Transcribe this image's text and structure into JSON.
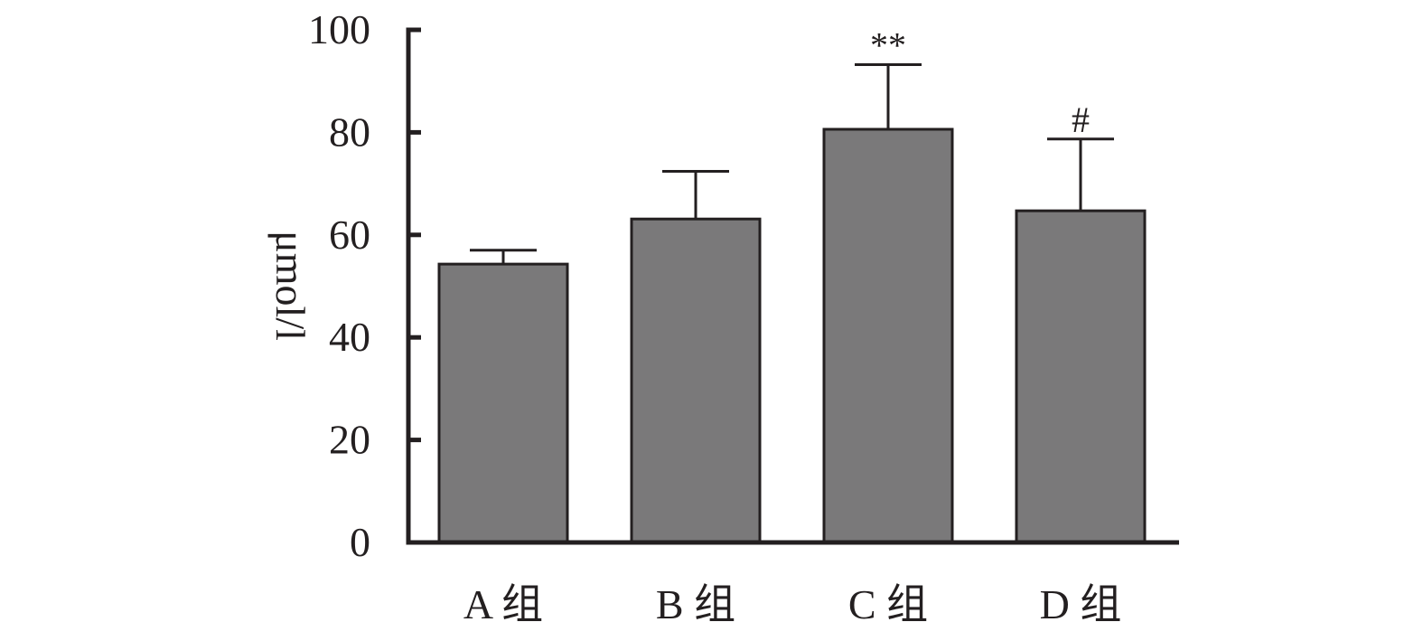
{
  "chart_data": {
    "type": "bar",
    "title": "",
    "xlabel": "",
    "ylabel": "μmol/l",
    "ylim": [
      0,
      100
    ],
    "yticks": [
      0,
      20,
      40,
      60,
      80,
      100
    ],
    "ytick_labels": [
      "0",
      "20",
      "40",
      "60",
      "80",
      "100"
    ],
    "categories": [
      "A 组",
      "B 组",
      "C 组",
      "D 组"
    ],
    "values": [
      54.3,
      63.1,
      80.6,
      64.7
    ],
    "error_upper": [
      57.0,
      72.4,
      93.2,
      78.7
    ],
    "annotations": [
      "",
      "",
      "**",
      "#"
    ],
    "bar_color": "#7a797a",
    "grid": false,
    "legend": "none"
  }
}
